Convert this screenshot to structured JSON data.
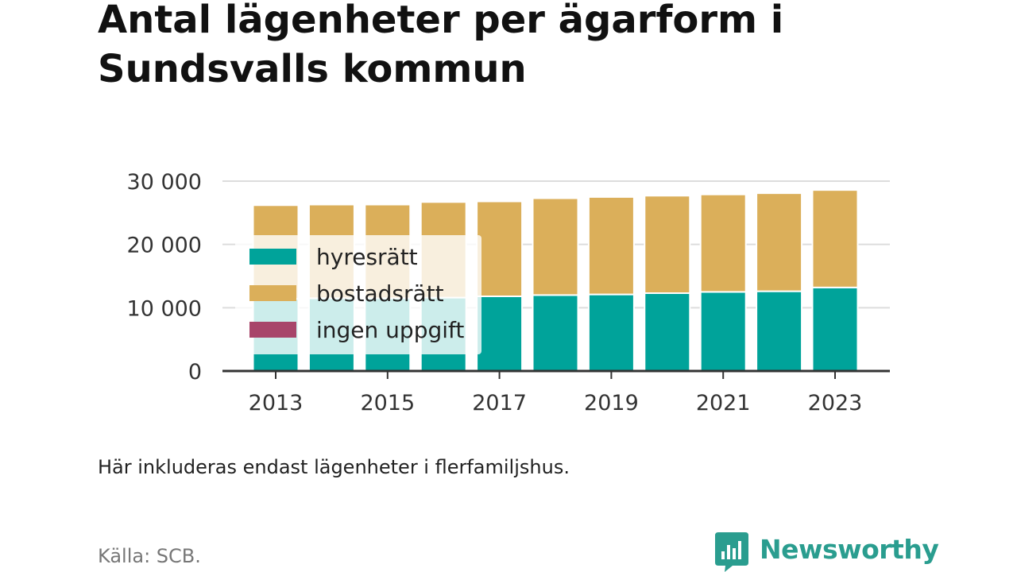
{
  "title": "Antal lägenheter per ägarform i Sundsvalls kommun",
  "note": "Här inkluderas endast lägenheter i flerfamiljshus.",
  "source": "Källa: SCB.",
  "brand": {
    "name": "Newsworthy",
    "icon": "newsworthy-logo-icon",
    "color": "#2a9d8f"
  },
  "chart_data": {
    "type": "bar",
    "stacked": true,
    "categories": [
      "2013",
      "2014",
      "2015",
      "2016",
      "2017",
      "2018",
      "2019",
      "2020",
      "2021",
      "2022",
      "2023"
    ],
    "x_tick_labels": [
      "2013",
      "2015",
      "2017",
      "2019",
      "2021",
      "2023"
    ],
    "y_tick_labels": [
      "0",
      "10 000",
      "20 000",
      "30 000"
    ],
    "y_ticks": [
      0,
      10000,
      20000,
      30000
    ],
    "ylim": [
      0,
      30000
    ],
    "grid": true,
    "legend_position": "top-left",
    "series": [
      {
        "name": "hyresrätt",
        "color": "#00a39a",
        "values": [
          11400,
          11500,
          11500,
          11600,
          11800,
          12000,
          12100,
          12300,
          12500,
          12600,
          13200
        ]
      },
      {
        "name": "bostadsrätt",
        "color": "#dbaf5a",
        "values": [
          14800,
          14800,
          14800,
          15100,
          15000,
          15300,
          15400,
          15400,
          15400,
          15500,
          15400
        ]
      },
      {
        "name": "ingen uppgift",
        "color": "#a8456a",
        "values": [
          0,
          0,
          0,
          0,
          0,
          0,
          0,
          0,
          0,
          0,
          0
        ]
      }
    ]
  }
}
